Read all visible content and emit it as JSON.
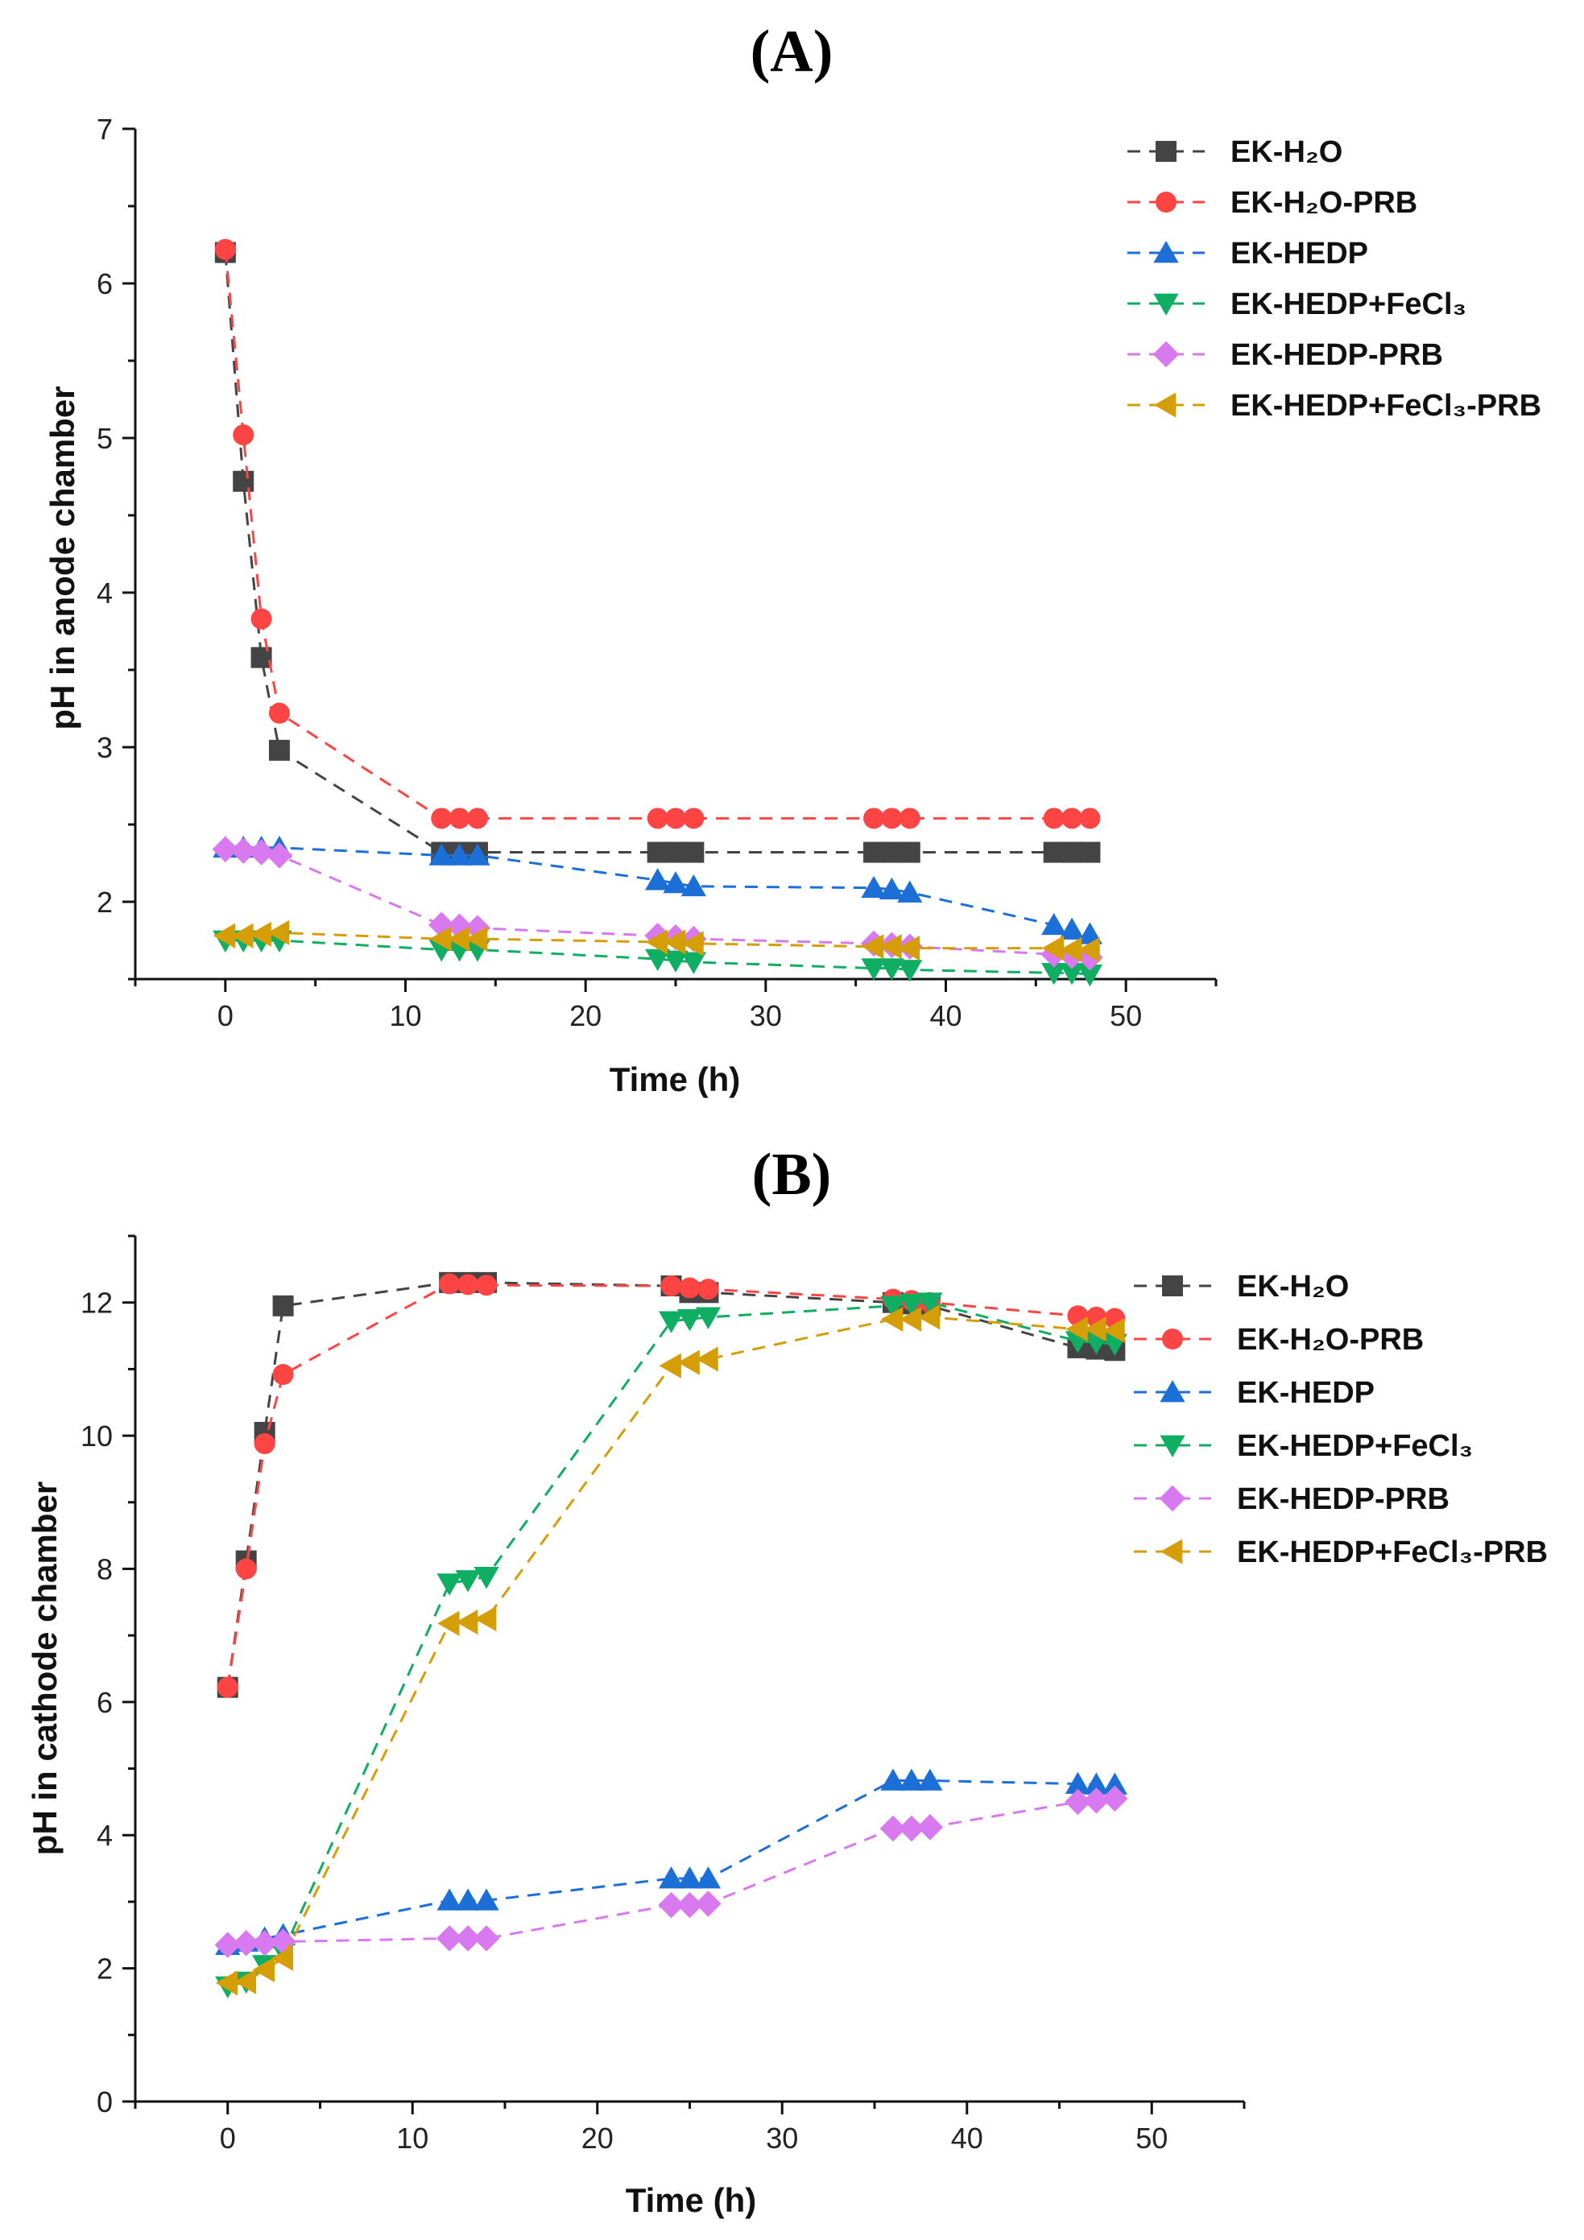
{
  "chart_data": [
    {
      "panel_label": "(A)",
      "type": "line",
      "xlabel": "Time (h)",
      "ylabel": "pH in anode chamber",
      "xlim": [
        -5,
        55
      ],
      "ylim": [
        1.5,
        7
      ],
      "xticks": [
        0,
        10,
        20,
        30,
        40,
        50
      ],
      "yticks": [
        2,
        3,
        4,
        5,
        6,
        7
      ],
      "legend_position": "top-right",
      "x": [
        0,
        1,
        2,
        3,
        12,
        13,
        14,
        24,
        25,
        26,
        36,
        37,
        38,
        46,
        47,
        48
      ],
      "series": [
        {
          "name": "EK-H₂O",
          "color": "#444444",
          "marker": "square",
          "values": [
            6.2,
            4.72,
            3.58,
            2.98,
            2.32,
            2.32,
            2.32,
            2.32,
            2.32,
            2.32,
            2.32,
            2.32,
            2.32,
            2.32,
            2.32,
            2.32
          ]
        },
        {
          "name": "EK-H₂O-PRB",
          "color": "#ff4444",
          "marker": "circle",
          "values": [
            6.22,
            5.02,
            3.83,
            3.22,
            2.54,
            2.54,
            2.54,
            2.54,
            2.54,
            2.54,
            2.54,
            2.54,
            2.54,
            2.54,
            2.54,
            2.54
          ]
        },
        {
          "name": "EK-HEDP",
          "color": "#1c6fd6",
          "marker": "triangle-up",
          "values": [
            2.35,
            2.35,
            2.35,
            2.35,
            2.3,
            2.3,
            2.3,
            2.14,
            2.12,
            2.1,
            2.09,
            2.08,
            2.06,
            1.85,
            1.82,
            1.79
          ]
        },
        {
          "name": "EK-HEDP+FeCl₃",
          "color": "#0fae62",
          "marker": "triangle-down",
          "values": [
            1.75,
            1.75,
            1.75,
            1.75,
            1.69,
            1.69,
            1.69,
            1.63,
            1.62,
            1.61,
            1.57,
            1.57,
            1.56,
            1.54,
            1.54,
            1.53
          ]
        },
        {
          "name": "EK-HEDP-PRB",
          "color": "#d979f0",
          "marker": "diamond",
          "values": [
            2.34,
            2.33,
            2.32,
            2.3,
            1.85,
            1.84,
            1.83,
            1.78,
            1.77,
            1.76,
            1.73,
            1.72,
            1.71,
            1.66,
            1.65,
            1.64
          ]
        },
        {
          "name": "EK-HEDP+FeCl₃-PRB",
          "color": "#d69e06",
          "marker": "triangle-left",
          "values": [
            1.78,
            1.78,
            1.79,
            1.8,
            1.76,
            1.76,
            1.76,
            1.74,
            1.74,
            1.73,
            1.71,
            1.71,
            1.7,
            1.7,
            1.69,
            1.69
          ]
        }
      ]
    },
    {
      "panel_label": "(B)",
      "type": "line",
      "xlabel": "Time (h)",
      "ylabel": "pH in cathode chamber",
      "xlim": [
        -5,
        55
      ],
      "ylim": [
        0,
        13
      ],
      "xticks": [
        0,
        10,
        20,
        30,
        40,
        50
      ],
      "yticks": [
        0,
        2,
        4,
        6,
        8,
        10,
        12
      ],
      "legend_position": "top-right",
      "x": [
        0,
        1,
        2,
        3,
        12,
        13,
        14,
        24,
        25,
        26,
        36,
        37,
        38,
        46,
        47,
        48
      ],
      "series": [
        {
          "name": "EK-H₂O",
          "color": "#444444",
          "marker": "square",
          "values": [
            6.22,
            8.12,
            10.05,
            11.95,
            12.3,
            12.3,
            12.3,
            12.25,
            12.15,
            12.15,
            12.0,
            11.98,
            11.95,
            11.32,
            11.3,
            11.28
          ]
        },
        {
          "name": "EK-H₂O-PRB",
          "color": "#ff4444",
          "marker": "circle",
          "values": [
            6.22,
            8.0,
            9.88,
            10.92,
            12.28,
            12.27,
            12.26,
            12.25,
            12.22,
            12.2,
            12.05,
            12.03,
            12.0,
            11.8,
            11.78,
            11.76
          ]
        },
        {
          "name": "EK-HEDP",
          "color": "#1c6fd6",
          "marker": "triangle-up",
          "values": [
            2.35,
            2.4,
            2.45,
            2.5,
            3.02,
            3.02,
            3.02,
            3.35,
            3.35,
            3.35,
            4.82,
            4.82,
            4.82,
            4.77,
            4.76,
            4.76
          ]
        },
        {
          "name": "EK-HEDP+FeCl₃",
          "color": "#0fae62",
          "marker": "triangle-down",
          "values": [
            1.73,
            1.8,
            2.05,
            2.25,
            7.78,
            7.83,
            7.88,
            11.72,
            11.75,
            11.78,
            11.95,
            11.98,
            12.0,
            11.42,
            11.4,
            11.38
          ]
        },
        {
          "name": "EK-HEDP-PRB",
          "color": "#d979f0",
          "marker": "diamond",
          "values": [
            2.35,
            2.38,
            2.38,
            2.4,
            2.45,
            2.45,
            2.45,
            2.95,
            2.95,
            2.97,
            4.1,
            4.1,
            4.12,
            4.5,
            4.52,
            4.55
          ]
        },
        {
          "name": "EK-HEDP+FeCl₃-PRB",
          "color": "#d69e06",
          "marker": "triangle-left",
          "values": [
            1.78,
            1.8,
            1.98,
            2.15,
            7.18,
            7.2,
            7.25,
            11.05,
            11.1,
            11.15,
            11.75,
            11.75,
            11.78,
            11.6,
            11.6,
            11.58
          ]
        }
      ]
    }
  ]
}
